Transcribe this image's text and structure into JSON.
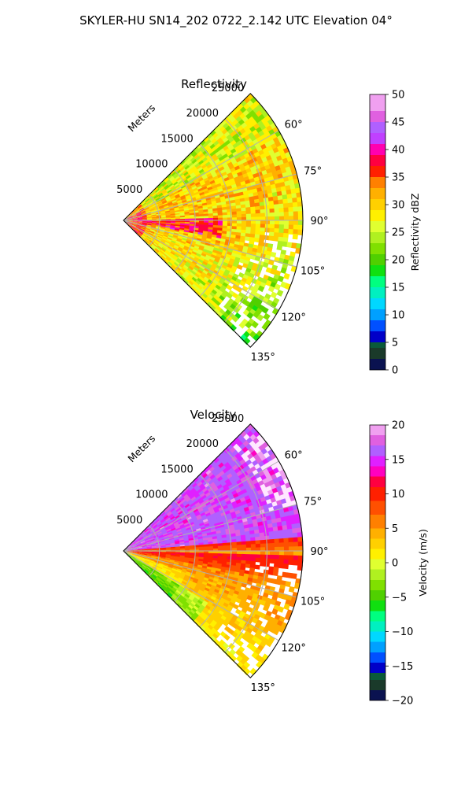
{
  "suptitle": "SKYLER-HU  SN14_202  0722_2.142 UTC Elevation 04°",
  "chart_data": [
    {
      "type": "heatmap",
      "subtype": "polar-sector",
      "title": "Reflectivity",
      "range_label": "Meters",
      "theta_range_deg": [
        45,
        135
      ],
      "r_max": 25000,
      "range_ticks": [
        {
          "value": 5000,
          "label": "5000"
        },
        {
          "value": 10000,
          "label": "10000"
        },
        {
          "value": 15000,
          "label": "15000"
        },
        {
          "value": 20000,
          "label": "20000"
        },
        {
          "value": 25000,
          "label": "25000"
        }
      ],
      "angle_ticks": [
        {
          "value": 60,
          "label": "60°"
        },
        {
          "value": 75,
          "label": "75°"
        },
        {
          "value": 90,
          "label": "90°"
        },
        {
          "value": 105,
          "label": "105°"
        },
        {
          "value": 120,
          "label": "120°"
        },
        {
          "value": 135,
          "label": "135°"
        }
      ],
      "grid": true,
      "colorbar": {
        "label": "Reflectivity dBZ",
        "range": [
          0,
          50
        ],
        "ticks": [
          {
            "value": 0,
            "label": "0"
          },
          {
            "value": 5,
            "label": "5"
          },
          {
            "value": 10,
            "label": "10"
          },
          {
            "value": 15,
            "label": "15"
          },
          {
            "value": 20,
            "label": "20"
          },
          {
            "value": 25,
            "label": "25"
          },
          {
            "value": 30,
            "label": "30"
          },
          {
            "value": 35,
            "label": "35"
          },
          {
            "value": 40,
            "label": "40"
          },
          {
            "value": 45,
            "label": "45"
          },
          {
            "value": 50,
            "label": "50"
          }
        ],
        "stops": [
          {
            "v": 0,
            "c": "#0a1250"
          },
          {
            "v": 2,
            "c": "#1a3a2a"
          },
          {
            "v": 4,
            "c": "#0a5a3a"
          },
          {
            "v": 5,
            "c": "#0000c8"
          },
          {
            "v": 7,
            "c": "#0050ff"
          },
          {
            "v": 9,
            "c": "#00a0ff"
          },
          {
            "v": 11,
            "c": "#00d8ff"
          },
          {
            "v": 13,
            "c": "#00f0c0"
          },
          {
            "v": 15,
            "c": "#00ff80"
          },
          {
            "v": 17,
            "c": "#10e010"
          },
          {
            "v": 19,
            "c": "#50d000"
          },
          {
            "v": 21,
            "c": "#80e000"
          },
          {
            "v": 23,
            "c": "#b0f020"
          },
          {
            "v": 25,
            "c": "#e0ff30"
          },
          {
            "v": 27,
            "c": "#fff000"
          },
          {
            "v": 29,
            "c": "#ffd000"
          },
          {
            "v": 31,
            "c": "#ffb000"
          },
          {
            "v": 33,
            "c": "#ff8000"
          },
          {
            "v": 35,
            "c": "#ff2000"
          },
          {
            "v": 37,
            "c": "#ff0040"
          },
          {
            "v": 39,
            "c": "#ff00b0"
          },
          {
            "v": 41,
            "c": "#c040ff"
          },
          {
            "v": 43,
            "c": "#b060ff"
          },
          {
            "v": 45,
            "c": "#e060e0"
          },
          {
            "v": 47,
            "c": "#f0a0f0"
          },
          {
            "v": 50,
            "c": "#ffe8ff"
          }
        ]
      }
    },
    {
      "type": "heatmap",
      "subtype": "polar-sector",
      "title": "Velocity",
      "range_label": "Meters",
      "theta_range_deg": [
        45,
        135
      ],
      "r_max": 25000,
      "range_ticks": [
        {
          "value": 5000,
          "label": "5000"
        },
        {
          "value": 10000,
          "label": "10000"
        },
        {
          "value": 15000,
          "label": "15000"
        },
        {
          "value": 20000,
          "label": "20000"
        },
        {
          "value": 25000,
          "label": "25000"
        }
      ],
      "angle_ticks": [
        {
          "value": 60,
          "label": "60°"
        },
        {
          "value": 75,
          "label": "75°"
        },
        {
          "value": 90,
          "label": "90°"
        },
        {
          "value": 105,
          "label": "105°"
        },
        {
          "value": 120,
          "label": "120°"
        },
        {
          "value": 135,
          "label": "135°"
        }
      ],
      "grid": true,
      "colorbar": {
        "label": "Velocity (m/s)",
        "range": [
          -20,
          20
        ],
        "ticks": [
          {
            "value": -20,
            "label": "−20"
          },
          {
            "value": -15,
            "label": "−15"
          },
          {
            "value": -10,
            "label": "−10"
          },
          {
            "value": -5,
            "label": "−5"
          },
          {
            "value": 0,
            "label": "0"
          },
          {
            "value": 5,
            "label": "5"
          },
          {
            "value": 10,
            "label": "10"
          },
          {
            "value": 15,
            "label": "15"
          },
          {
            "value": 20,
            "label": "20"
          }
        ],
        "stops": [
          {
            "v": -20,
            "c": "#0a1250"
          },
          {
            "v": -18.5,
            "c": "#1a3a2a"
          },
          {
            "v": -17,
            "c": "#0a5a3a"
          },
          {
            "v": -16,
            "c": "#0000c8"
          },
          {
            "v": -14.5,
            "c": "#0050ff"
          },
          {
            "v": -13,
            "c": "#00a0ff"
          },
          {
            "v": -11.5,
            "c": "#00d8ff"
          },
          {
            "v": -10,
            "c": "#00f0c0"
          },
          {
            "v": -8.5,
            "c": "#00ff80"
          },
          {
            "v": -7,
            "c": "#10e010"
          },
          {
            "v": -5.5,
            "c": "#50d000"
          },
          {
            "v": -4,
            "c": "#80e000"
          },
          {
            "v": -2.5,
            "c": "#b0f020"
          },
          {
            "v": -1,
            "c": "#e0ff30"
          },
          {
            "v": 0.5,
            "c": "#fff000"
          },
          {
            "v": 2,
            "c": "#ffd000"
          },
          {
            "v": 3.5,
            "c": "#ffb000"
          },
          {
            "v": 5,
            "c": "#ff8000"
          },
          {
            "v": 7,
            "c": "#ff5000"
          },
          {
            "v": 9,
            "c": "#ff2000"
          },
          {
            "v": 11,
            "c": "#ff0040"
          },
          {
            "v": 12.5,
            "c": "#ff00c0"
          },
          {
            "v": 14,
            "c": "#e020ff"
          },
          {
            "v": 15.5,
            "c": "#b060ff"
          },
          {
            "v": 17,
            "c": "#e060e0"
          },
          {
            "v": 18.5,
            "c": "#f0a0f0"
          },
          {
            "v": 20,
            "c": "#ffe8ff"
          }
        ]
      }
    }
  ]
}
